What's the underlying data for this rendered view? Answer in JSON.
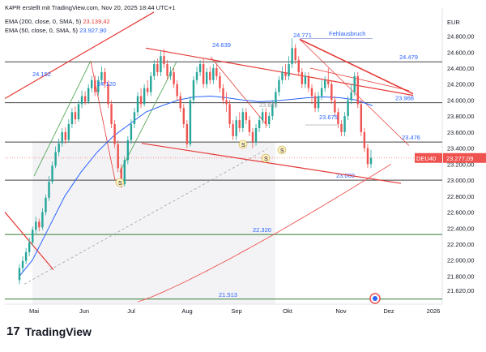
{
  "header": {
    "credit": "K4PR erstellt mit TradingView.com, Nov 20, 2025 18:44 UTC+1",
    "ema200_label": "EMA (200, close, 0, SMA, 5)",
    "ema200_value": "23.139,42",
    "ema50_label": "EMA (50, close, 0, SMA, 5)",
    "ema50_value": "23.927,90"
  },
  "footer": {
    "logo": "17",
    "brand": "TradingView"
  },
  "colors": {
    "up": "#26a69a",
    "down": "#ef5350",
    "ema50": "#2962ff",
    "ema200": "#ef5350",
    "trend": "#e53935",
    "horizontal": "#424242",
    "support": "#2e7d32"
  },
  "chart_data": {
    "type": "candlestick",
    "symbol": "DEU40",
    "currency": "EUR",
    "last_price": "23.277,09",
    "ylim": [
      21450,
      25150
    ],
    "x_ticks": [
      "Mai",
      "Jun",
      "Jul",
      "Aug",
      "Sep",
      "Okt",
      "Nov",
      "Dez",
      "2026"
    ],
    "y_ticks": [
      "24.800,00",
      "24.600,00",
      "24.400,00",
      "24.200,00",
      "24.000,00",
      "23.800,00",
      "23.600,00",
      "23.400,00",
      "23.200,00",
      "23.000,00",
      "22.800,00",
      "22.600,00",
      "22.400,00",
      "22.200,00",
      "22.000,00",
      "21.800,00",
      "21.620,00"
    ],
    "horizontal_levels": [
      {
        "value": 24479,
        "label": "24.479"
      },
      {
        "value": 23968,
        "label": "23.968"
      },
      {
        "value": 23476,
        "label": "23.476"
      },
      {
        "value": 23000,
        "label": "23.000"
      },
      {
        "value": 22320,
        "label": "22.320"
      },
      {
        "value": 21513,
        "label": "21.513"
      }
    ],
    "annotations": [
      {
        "text": "24.152",
        "value": 24152
      },
      {
        "text": "24.120",
        "value": 24120
      },
      {
        "text": "24.639",
        "value": 24639
      },
      {
        "text": "24.771",
        "value": 24771
      },
      {
        "text": "Fehlausbruch",
        "value": 24771
      },
      {
        "text": "23.845",
        "value": 23845
      },
      {
        "text": "23.675",
        "value": 23675
      },
      {
        "text": "S",
        "value": 22900
      },
      {
        "text": "S",
        "value": 23400
      },
      {
        "text": "S",
        "value": 23400
      },
      {
        "text": "S",
        "value": 23300
      }
    ],
    "candles": [
      [
        21750,
        21900,
        21700,
        21950
      ],
      [
        21900,
        21990,
        21850,
        22050
      ],
      [
        21990,
        22100,
        21950,
        22150
      ],
      [
        22100,
        22220,
        22050,
        22280
      ],
      [
        22220,
        22380,
        22180,
        22420
      ],
      [
        22380,
        22480,
        22330,
        22540
      ],
      [
        22480,
        22410,
        22360,
        22520
      ],
      [
        22410,
        22600,
        22380,
        22650
      ],
      [
        22600,
        22780,
        22560,
        22820
      ],
      [
        22780,
        22980,
        22740,
        23050
      ],
      [
        22980,
        23180,
        22950,
        23230
      ],
      [
        23180,
        23350,
        23150,
        23420
      ],
      [
        23350,
        23460,
        23300,
        23520
      ],
      [
        23460,
        23600,
        23420,
        23650
      ],
      [
        23600,
        23500,
        23450,
        23660
      ],
      [
        23500,
        23700,
        23470,
        23760
      ],
      [
        23700,
        23850,
        23650,
        23900
      ],
      [
        23850,
        23760,
        23700,
        23920
      ],
      [
        23760,
        23950,
        23730,
        24000
      ],
      [
        23950,
        24050,
        23900,
        24120
      ],
      [
        24050,
        23980,
        23940,
        24110
      ],
      [
        23980,
        24150,
        23950,
        24200
      ],
      [
        24150,
        24250,
        24100,
        24300
      ],
      [
        24250,
        24100,
        24050,
        24310
      ],
      [
        24100,
        24250,
        24060,
        24300
      ],
      [
        24250,
        24350,
        24200,
        24420
      ],
      [
        24350,
        24200,
        24150,
        24400
      ],
      [
        24200,
        23950,
        23900,
        24250
      ],
      [
        23950,
        23700,
        23650,
        24000
      ],
      [
        23700,
        23450,
        23400,
        23750
      ],
      [
        23450,
        23150,
        23100,
        23500
      ],
      [
        23150,
        22950,
        22900,
        23200
      ],
      [
        22950,
        23250,
        22920,
        23300
      ],
      [
        23250,
        23500,
        23200,
        23550
      ],
      [
        23500,
        23700,
        23450,
        23760
      ],
      [
        23700,
        23850,
        23650,
        23900
      ],
      [
        23850,
        24050,
        23800,
        24100
      ],
      [
        24050,
        23950,
        23900,
        24150
      ],
      [
        23950,
        24150,
        23920,
        24200
      ],
      [
        24150,
        24100,
        24050,
        24250
      ],
      [
        24100,
        24300,
        24050,
        24350
      ],
      [
        24300,
        24450,
        24250,
        24500
      ],
      [
        24450,
        24350,
        24300,
        24520
      ],
      [
        24350,
        24550,
        24300,
        24620
      ],
      [
        24550,
        24450,
        24400,
        24640
      ],
      [
        24450,
        24300,
        24250,
        24500
      ],
      [
        24300,
        24350,
        24250,
        24420
      ],
      [
        24350,
        24200,
        24150,
        24400
      ],
      [
        24200,
        24050,
        24000,
        24250
      ],
      [
        24050,
        23900,
        23850,
        24100
      ],
      [
        23900,
        23700,
        23650,
        23950
      ],
      [
        23700,
        23450,
        23400,
        23750
      ],
      [
        23450,
        24000,
        23420,
        24050
      ],
      [
        24000,
        24250,
        23950,
        24300
      ],
      [
        24250,
        24350,
        24200,
        24420
      ],
      [
        24350,
        24450,
        24300,
        24500
      ],
      [
        24450,
        24200,
        24150,
        24520
      ],
      [
        24200,
        24350,
        24150,
        24400
      ],
      [
        24350,
        24250,
        24200,
        24420
      ],
      [
        24250,
        24400,
        24200,
        24450
      ],
      [
        24400,
        24300,
        24250,
        24460
      ],
      [
        24300,
        24150,
        24100,
        24350
      ],
      [
        24150,
        24000,
        23950,
        24200
      ],
      [
        24000,
        23950,
        23850,
        24100
      ],
      [
        23950,
        23700,
        23650,
        24000
      ],
      [
        23700,
        23550,
        23500,
        23750
      ],
      [
        23550,
        23750,
        23500,
        23800
      ],
      [
        23750,
        23650,
        23600,
        23850
      ],
      [
        23650,
        23850,
        23600,
        23900
      ],
      [
        23850,
        23750,
        23700,
        23900
      ],
      [
        23750,
        23600,
        23550,
        23800
      ],
      [
        23600,
        23480,
        23400,
        23650
      ],
      [
        23480,
        23650,
        23430,
        23700
      ],
      [
        23650,
        23750,
        23600,
        23800
      ],
      [
        23750,
        23850,
        23700,
        23900
      ],
      [
        23850,
        23700,
        23650,
        23900
      ],
      [
        23700,
        23800,
        23650,
        23850
      ],
      [
        23800,
        23950,
        23750,
        24000
      ],
      [
        23950,
        24100,
        23900,
        24150
      ],
      [
        24100,
        24250,
        24050,
        24300
      ],
      [
        24250,
        24350,
        24200,
        24420
      ],
      [
        24350,
        24300,
        24250,
        24450
      ],
      [
        24300,
        24450,
        24250,
        24550
      ],
      [
        24450,
        24650,
        24400,
        24771
      ],
      [
        24650,
        24500,
        24450,
        24700
      ],
      [
        24500,
        24350,
        24300,
        24550
      ],
      [
        24350,
        24200,
        24150,
        24400
      ],
      [
        24200,
        24300,
        24150,
        24350
      ],
      [
        24300,
        24150,
        24100,
        24350
      ],
      [
        24150,
        24050,
        23950,
        24200
      ],
      [
        24050,
        23900,
        23850,
        24100
      ],
      [
        23900,
        24050,
        23850,
        24100
      ],
      [
        24050,
        24150,
        24000,
        24250
      ],
      [
        24150,
        24250,
        24100,
        24300
      ],
      [
        24250,
        24200,
        24150,
        24400
      ],
      [
        24200,
        24000,
        23950,
        24250
      ],
      [
        24000,
        23850,
        23800,
        24050
      ],
      [
        23850,
        23700,
        23650,
        23900
      ],
      [
        23700,
        23600,
        23550,
        23750
      ],
      [
        23600,
        23800,
        23550,
        23850
      ],
      [
        23800,
        24000,
        23750,
        24050
      ],
      [
        24000,
        24100,
        23950,
        24200
      ],
      [
        24100,
        24300,
        24050,
        24350
      ],
      [
        24300,
        23950,
        23900,
        24350
      ],
      [
        23950,
        23600,
        23550,
        24000
      ],
      [
        23600,
        23400,
        23350,
        23650
      ],
      [
        23400,
        23200,
        23150,
        23450
      ],
      [
        23200,
        23277,
        23150,
        23380
      ]
    ]
  }
}
